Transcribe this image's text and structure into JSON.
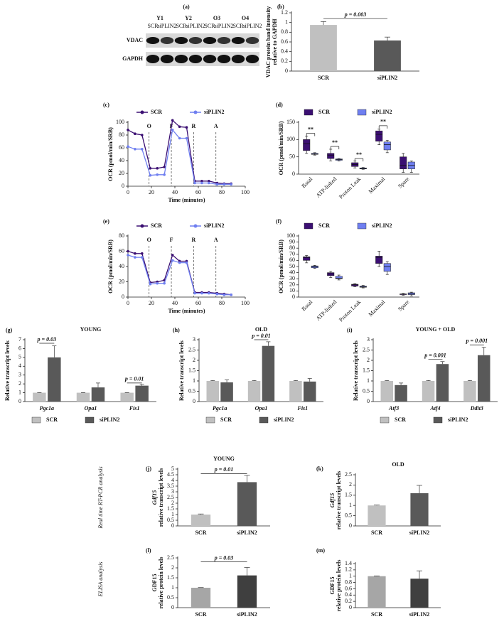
{
  "blot": {
    "label": "(a)",
    "groups": [
      "Y1",
      "Y2",
      "O3",
      "O4"
    ],
    "lanes": [
      "SCR",
      "siPLIN2",
      "SCR",
      "siPLIN2",
      "SCR",
      "siPLIN2",
      "SCR",
      "siPLIN2"
    ],
    "rows": [
      "VDAC",
      "GAPDH"
    ]
  },
  "row_labels": [
    "Real time RT-PCR analysis",
    "ELISA analysis"
  ],
  "chart_data": [
    {
      "type": "bar",
      "panel": "(b)",
      "ylabel": [
        "VDAC protein band intensity",
        "relative to GAPDH"
      ],
      "categories": [
        "SCR",
        "siPLIN2"
      ],
      "values": [
        0.95,
        0.63
      ],
      "errors": [
        0.07,
        0.07
      ],
      "colors": [
        "#c0c0c0",
        "#595959"
      ],
      "ylim": [
        0,
        1.2
      ],
      "yticks": [
        0,
        0.2,
        0.4,
        0.6,
        0.8,
        1,
        1.2
      ],
      "annotations": [
        "p = 0.003"
      ]
    },
    {
      "type": "line",
      "panel": "(c)",
      "xlabel": "Time (minutes)",
      "ylabel": "OCR (pmol/min/SRB)",
      "x": [
        0,
        6,
        12,
        19,
        25,
        31,
        38,
        44,
        50,
        57,
        63,
        69,
        76,
        82,
        88
      ],
      "series": [
        {
          "name": "SCR",
          "color": "#3b0f72",
          "values": [
            88,
            82,
            80,
            28,
            28,
            30,
            103,
            93,
            92,
            8,
            8,
            8,
            5,
            4,
            4
          ]
        },
        {
          "name": "siPLIN2",
          "color": "#6f7ff0",
          "values": [
            62,
            58,
            58,
            17,
            18,
            18,
            88,
            75,
            75,
            5,
            5,
            5,
            3,
            3,
            3
          ]
        }
      ],
      "markers": [
        {
          "x": 18,
          "label": "O"
        },
        {
          "x": 37,
          "label": "F"
        },
        {
          "x": 56,
          "label": "R"
        },
        {
          "x": 75,
          "label": "A"
        }
      ],
      "xlim": [
        0,
        100
      ],
      "xticks": [
        0,
        20,
        40,
        60,
        80,
        100
      ],
      "ylim": [
        0,
        100
      ],
      "yticks": [
        0,
        20,
        40,
        60,
        80,
        100
      ]
    },
    {
      "type": "box",
      "panel": "(d)",
      "ylabel": "OCR (pmol/min/SRB)",
      "categories": [
        "Basal",
        "ATP-linked",
        "Proton Leak",
        "Maximal",
        "Spare"
      ],
      "series": [
        {
          "name": "SCR",
          "color": "#3b0f72",
          "boxes": [
            {
              "min": 60,
              "q1": 68,
              "median": 88,
              "q3": 100,
              "max": 110
            },
            {
              "min": 38,
              "q1": 45,
              "median": 55,
              "q3": 60,
              "max": 72
            },
            {
              "min": 18,
              "q1": 22,
              "median": 28,
              "q3": 33,
              "max": 38
            },
            {
              "min": 85,
              "q1": 95,
              "median": 115,
              "q3": 125,
              "max": 130
            },
            {
              "min": 5,
              "q1": 15,
              "median": 25,
              "q3": 50,
              "max": 60
            }
          ]
        },
        {
          "name": "siPLIN2",
          "color": "#6f7ff0",
          "boxes": [
            {
              "min": 55,
              "q1": 57,
              "median": 58,
              "q3": 60,
              "max": 62
            },
            {
              "min": 38,
              "q1": 40,
              "median": 42,
              "q3": 44,
              "max": 45
            },
            {
              "min": 14,
              "q1": 15,
              "median": 16,
              "q3": 18,
              "max": 19
            },
            {
              "min": 62,
              "q1": 70,
              "median": 85,
              "q3": 93,
              "max": 98
            },
            {
              "min": 5,
              "q1": 15,
              "median": 25,
              "q3": 35,
              "max": 38
            }
          ]
        }
      ],
      "ylim": [
        0,
        150
      ],
      "yticks": [
        0,
        50,
        100,
        150
      ],
      "annotations": [
        "**",
        "**",
        "**",
        "**"
      ]
    },
    {
      "type": "line",
      "panel": "(e)",
      "xlabel": "Time (minutes)",
      "ylabel": "OCR (pmol/min/SRB)",
      "x": [
        0,
        6,
        12,
        19,
        25,
        31,
        38,
        44,
        50,
        57,
        63,
        69,
        76,
        82,
        88
      ],
      "series": [
        {
          "name": "SCR",
          "color": "#3b0f72",
          "values": [
            60,
            57,
            57,
            19,
            20,
            22,
            55,
            47,
            47,
            6,
            6,
            6,
            5,
            4,
            3
          ]
        },
        {
          "name": "siPLIN2",
          "color": "#6f7ff0",
          "values": [
            55,
            52,
            52,
            17,
            18,
            18,
            48,
            45,
            45,
            5,
            5,
            5,
            4,
            3,
            3
          ]
        }
      ],
      "markers": [
        {
          "x": 18,
          "label": "O"
        },
        {
          "x": 37,
          "label": "F"
        },
        {
          "x": 56,
          "label": "R"
        },
        {
          "x": 75,
          "label": "A"
        }
      ],
      "xlim": [
        0,
        100
      ],
      "xticks": [
        0,
        20,
        40,
        60,
        80,
        100
      ],
      "ylim": [
        0,
        80
      ],
      "yticks": [
        0,
        20,
        40,
        60,
        80
      ]
    },
    {
      "type": "box",
      "panel": "(f)",
      "ylabel": "OCR (pmol/min/SRB)",
      "categories": [
        "Basal",
        "ATP-linked",
        "Proton Leak",
        "Maximal",
        "Spare"
      ],
      "series": [
        {
          "name": "SCR",
          "color": "#3b0f72",
          "boxes": [
            {
              "min": 56,
              "q1": 60,
              "median": 65,
              "q3": 66,
              "max": 68
            },
            {
              "min": 32,
              "q1": 35,
              "median": 38,
              "q3": 40,
              "max": 42
            },
            {
              "min": 17,
              "q1": 18,
              "median": 20,
              "q3": 21,
              "max": 22
            },
            {
              "min": 50,
              "q1": 55,
              "median": 65,
              "q3": 67,
              "max": 75
            },
            {
              "min": 3,
              "q1": 4,
              "median": 5,
              "q3": 5,
              "max": 6
            }
          ]
        },
        {
          "name": "siPLIN2",
          "color": "#6f7ff0",
          "boxes": [
            {
              "min": 47,
              "q1": 48,
              "median": 50,
              "q3": 51,
              "max": 52
            },
            {
              "min": 28,
              "q1": 30,
              "median": 31,
              "q3": 34,
              "max": 36
            },
            {
              "min": 15,
              "q1": 16,
              "median": 17,
              "q3": 18,
              "max": 19
            },
            {
              "min": 37,
              "q1": 42,
              "median": 50,
              "q3": 55,
              "max": 58
            },
            {
              "min": 2,
              "q1": 4,
              "median": 5,
              "q3": 7,
              "max": 8
            }
          ]
        }
      ],
      "ylim": [
        0,
        100
      ],
      "yticks": [
        0,
        10,
        20,
        30,
        40,
        50,
        60,
        70,
        80,
        90,
        100
      ]
    },
    {
      "type": "bar",
      "panel": "(g)",
      "title": "YOUNG",
      "ylabel": "Relative transcript levels",
      "italic_categories": true,
      "categories": [
        "Pgc1a",
        "Opa1",
        "Fis1"
      ],
      "series": [
        {
          "name": "SCR",
          "color": "#c0c0c0",
          "values": [
            1,
            1,
            1
          ],
          "errors": [
            0.02,
            0.02,
            0.02
          ]
        },
        {
          "name": "siPLIN2",
          "color": "#595959",
          "values": [
            5,
            1.6,
            1.8
          ],
          "errors": [
            1.3,
            0.5,
            0.15
          ]
        }
      ],
      "ylim": [
        0,
        7
      ],
      "yticks": [
        0,
        1,
        2,
        3,
        4,
        5,
        6,
        7
      ],
      "annotations": [
        "p = 0.03",
        "p = 0.01"
      ]
    },
    {
      "type": "bar",
      "panel": "(h)",
      "title": "OLD",
      "ylabel": "Relative transcript levels",
      "italic_categories": true,
      "categories": [
        "Pgc1a",
        "Opa1",
        "Fis1"
      ],
      "series": [
        {
          "name": "SCR",
          "color": "#c0c0c0",
          "values": [
            1,
            1,
            1
          ],
          "errors": [
            0.02,
            0.02,
            0.02
          ]
        },
        {
          "name": "siPLIN2",
          "color": "#595959",
          "values": [
            0.93,
            2.7,
            0.97
          ],
          "errors": [
            0.12,
            0.2,
            0.15
          ]
        }
      ],
      "ylim": [
        0,
        3
      ],
      "yticks": [
        0,
        0.5,
        1,
        1.5,
        2,
        2.5,
        3
      ],
      "annotations": [
        "p = 0.01"
      ]
    },
    {
      "type": "bar",
      "panel": "(i)",
      "title": "YOUNG + OLD",
      "ylabel": "Relative transcript levels",
      "italic_categories": true,
      "categories": [
        "Atf3",
        "Atf4",
        "Ddit3"
      ],
      "series": [
        {
          "name": "SCR",
          "color": "#c0c0c0",
          "values": [
            1,
            1,
            1
          ],
          "errors": [
            0.02,
            0.02,
            0.02
          ]
        },
        {
          "name": "siPLIN2",
          "color": "#595959",
          "values": [
            0.8,
            1.82,
            2.25
          ],
          "errors": [
            0.1,
            0.12,
            0.38
          ]
        }
      ],
      "ylim": [
        0,
        3
      ],
      "yticks": [
        0,
        0.5,
        1,
        1.5,
        2,
        2.5,
        3
      ],
      "annotations": [
        "p = 0.001",
        "p = 0.001"
      ]
    },
    {
      "type": "bar",
      "panel": "(j)",
      "title": "YOUNG",
      "ylabel": [
        "Gdf15",
        "relative transcript levels"
      ],
      "categories": [
        "SCR",
        "siPLIN2"
      ],
      "values": [
        1,
        3.85
      ],
      "errors": [
        0.05,
        0.6
      ],
      "colors": [
        "#c0c0c0",
        "#595959"
      ],
      "ylim": [
        0,
        5
      ],
      "yticks": [
        0,
        0.5,
        1,
        1.5,
        2,
        2.5,
        3,
        3.5,
        4,
        4.5,
        5
      ],
      "annotations": [
        "p = 0.01"
      ]
    },
    {
      "type": "bar",
      "panel": "(k)",
      "title": "OLD",
      "ylabel": [
        "Gdf15",
        "relative transcript levels"
      ],
      "categories": [
        "SCR",
        "siPLIN2"
      ],
      "values": [
        1,
        1.6
      ],
      "errors": [
        0.02,
        0.38
      ],
      "colors": [
        "#c0c0c0",
        "#595959"
      ],
      "ylim": [
        0,
        2.5
      ],
      "yticks": [
        0,
        0.5,
        1,
        1.5,
        2,
        2.5
      ]
    },
    {
      "type": "bar",
      "panel": "(l)",
      "ylabel": [
        "GDF15",
        "relative protein levels"
      ],
      "categories": [
        "SCR",
        "siPLIN2"
      ],
      "values": [
        1,
        1.62
      ],
      "errors": [
        0.01,
        0.4
      ],
      "colors": [
        "#a6a6a6",
        "#3f3f3f"
      ],
      "ylim": [
        0,
        2.5
      ],
      "yticks": [
        0,
        0.5,
        1,
        1.5,
        2,
        2.5
      ],
      "annotations": [
        "p = 0.03"
      ]
    },
    {
      "type": "bar",
      "panel": "(m)",
      "ylabel": [
        "GDF15",
        "relative protein levels"
      ],
      "categories": [
        "SCR",
        "siPLIN2"
      ],
      "values": [
        1,
        0.92
      ],
      "errors": [
        0.01,
        0.25
      ],
      "colors": [
        "#a6a6a6",
        "#3f3f3f"
      ],
      "ylim": [
        0,
        1.4
      ],
      "yticks": [
        0,
        0.2,
        0.4,
        0.6,
        0.8,
        1,
        1.2,
        1.4
      ]
    }
  ]
}
